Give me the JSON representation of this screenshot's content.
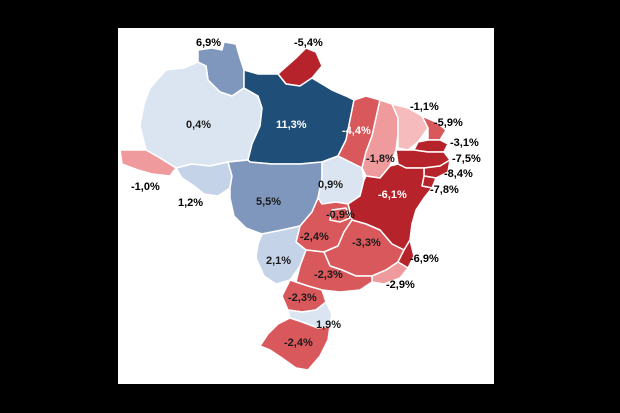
{
  "palette": {
    "strong_blue": "#1f4e79",
    "mid_blue": "#7f97bd",
    "light_blue": "#c5d3e8",
    "pale_blue": "#dbe5f1",
    "strong_red": "#b7232a",
    "mid_red": "#d9585c",
    "light_red": "#ef9a9c",
    "pale_red": "#f6bcbd"
  },
  "regions": [
    {
      "id": "roraima",
      "label": "6,9%",
      "color": "mid_blue"
    },
    {
      "id": "amapa",
      "label": "-5,4%",
      "color": "strong_red"
    },
    {
      "id": "amazonas",
      "label": "0,4%",
      "color": "pale_blue"
    },
    {
      "id": "para",
      "label": "11,3%",
      "color": "strong_blue"
    },
    {
      "id": "acre",
      "label": "-1,0%",
      "color": "light_red"
    },
    {
      "id": "rondonia",
      "label": "1,2%",
      "color": "light_blue"
    },
    {
      "id": "mato_grosso",
      "label": "5,5%",
      "color": "mid_blue"
    },
    {
      "id": "maranhao",
      "label": "-4,4%",
      "color": "mid_red"
    },
    {
      "id": "piaui",
      "label": "-1,8%",
      "color": "light_red"
    },
    {
      "id": "ceara",
      "label": "-1,1%",
      "color": "pale_red"
    },
    {
      "id": "rio_grande_do_norte",
      "label": "-5,9%",
      "color": "mid_red"
    },
    {
      "id": "paraiba",
      "label": "-3,1%",
      "color": "strong_red"
    },
    {
      "id": "pernambuco",
      "label": "-7,5%",
      "color": "strong_red"
    },
    {
      "id": "alagoas",
      "label": "-8,4%",
      "color": "strong_red"
    },
    {
      "id": "sergipe",
      "label": "-7,8%",
      "color": "strong_red"
    },
    {
      "id": "tocantins",
      "label": "0,9%",
      "color": "pale_blue"
    },
    {
      "id": "bahia",
      "label": "-6,1%",
      "color": "strong_red"
    },
    {
      "id": "distrito_federal",
      "label": "-0,9%",
      "color": "mid_red"
    },
    {
      "id": "goias",
      "label": "-2,4%",
      "color": "mid_red"
    },
    {
      "id": "minas_gerais",
      "label": "-3,3%",
      "color": "mid_red"
    },
    {
      "id": "espirito_santo",
      "label": "-6,9%",
      "color": "strong_red"
    },
    {
      "id": "mato_grosso_do_sul",
      "label": "2,1%",
      "color": "light_blue"
    },
    {
      "id": "sao_paulo",
      "label": "-2,3%",
      "color": "mid_red"
    },
    {
      "id": "rio_de_janeiro",
      "label": "-2,9%",
      "color": "light_red"
    },
    {
      "id": "parana",
      "label": "-2,3%",
      "color": "mid_red"
    },
    {
      "id": "santa_catarina",
      "label": "1,9%",
      "color": "pale_blue"
    },
    {
      "id": "rio_grande_do_sul",
      "label": "-2,4%",
      "color": "mid_red"
    }
  ]
}
